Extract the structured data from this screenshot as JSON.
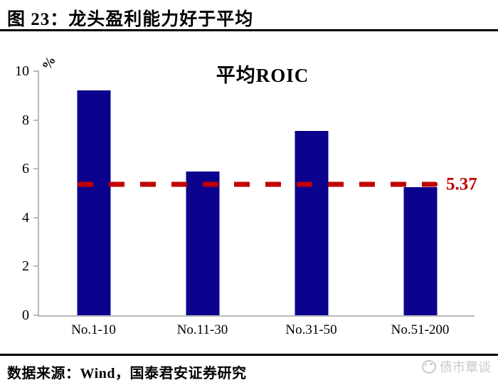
{
  "header": {
    "title": "图 23：龙头盈利能力好于平均"
  },
  "chart_data": {
    "type": "bar",
    "title": "平均ROIC",
    "unit_label": "%",
    "categories": [
      "No.1-10",
      "No.11-30",
      "No.31-50",
      "No.51-200"
    ],
    "values": [
      9.2,
      5.9,
      7.55,
      5.25
    ],
    "ylim": [
      0,
      10
    ],
    "yticks": [
      0,
      2,
      4,
      6,
      8,
      10
    ],
    "grid": false,
    "legend": "none",
    "bar_color": "#0b038e",
    "axis_color": "#b9b9b9",
    "reference_line": {
      "value": 5.37,
      "label": "5.37",
      "style": "dashed",
      "color": "#c00000"
    }
  },
  "footer": {
    "source": "数据来源：Wind，国泰君安证券研究",
    "watermark": "债市覃谈",
    "watermark_color": "#c8c8c8"
  }
}
